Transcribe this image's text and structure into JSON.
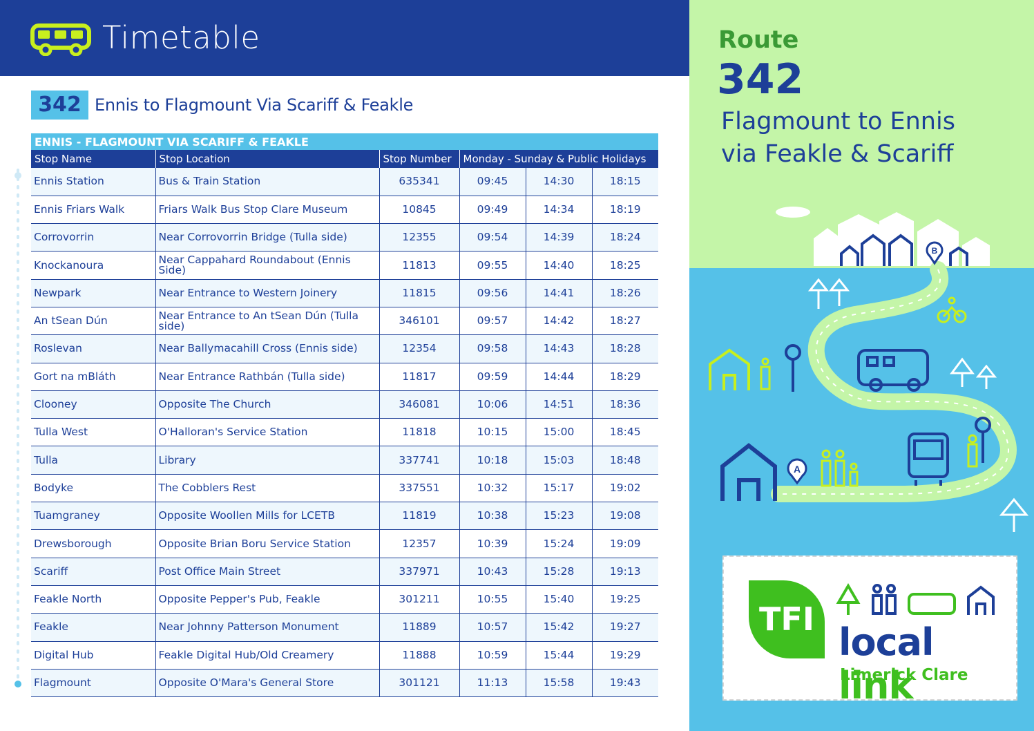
{
  "header": {
    "title": "Timetable"
  },
  "route": {
    "badge": "342",
    "name": "Ennis to Flagmount Via Scariff & Feakle"
  },
  "table": {
    "caption": "ENNIS - FLAGMOUNT VIA SCARIFF & FEAKLE",
    "headers": [
      "Stop Name",
      "Stop Location",
      "Stop Number",
      "Monday - Sunday & Public Holidays"
    ],
    "rows": [
      [
        "Ennis Station",
        "Bus & Train Station",
        "635341",
        "09:45",
        "14:30",
        "18:15"
      ],
      [
        "Ennis Friars Walk",
        "Friars Walk Bus Stop Clare Museum",
        "10845",
        "09:49",
        "14:34",
        "18:19"
      ],
      [
        "Corrovorrin",
        "Near Corrovorrin Bridge (Tulla side)",
        "12355",
        "09:54",
        "14:39",
        "18:24"
      ],
      [
        "Knockanoura",
        "Near Cappahard Roundabout (Ennis Side)",
        "11813",
        "09:55",
        "14:40",
        "18:25"
      ],
      [
        "Newpark",
        "Near Entrance to Western Joinery",
        "11815",
        "09:56",
        "14:41",
        "18:26"
      ],
      [
        "An tSean Dún",
        "Near Entrance to An tSean Dún (Tulla side)",
        "346101",
        "09:57",
        "14:42",
        "18:27"
      ],
      [
        "Roslevan",
        "Near Ballymacahill Cross (Ennis side)",
        "12354",
        "09:58",
        "14:43",
        "18:28"
      ],
      [
        "Gort na mBláth",
        "Near Entrance Rathbán (Tulla side)",
        "11817",
        "09:59",
        "14:44",
        "18:29"
      ],
      [
        "Clooney",
        "Opposite The Church",
        "346081",
        "10:06",
        "14:51",
        "18:36"
      ],
      [
        "Tulla West",
        "O'Halloran's Service Station",
        "11818",
        "10:15",
        "15:00",
        "18:45"
      ],
      [
        "Tulla",
        "Library",
        "337741",
        "10:18",
        "15:03",
        "18:48"
      ],
      [
        "Bodyke",
        "The Cobblers Rest",
        "337551",
        "10:32",
        "15:17",
        "19:02"
      ],
      [
        "Tuamgraney",
        "Opposite Woollen Mills for LCETB",
        "11819",
        "10:38",
        "15:23",
        "19:08"
      ],
      [
        "Drewsborough",
        "Opposite Brian Boru Service Station",
        "12357",
        "10:39",
        "15:24",
        "19:09"
      ],
      [
        "Scariff",
        "Post Office Main Street",
        "337971",
        "10:43",
        "15:28",
        "19:13"
      ],
      [
        "Feakle North",
        "Opposite Pepper's Pub, Feakle",
        "301211",
        "10:55",
        "15:40",
        "19:25"
      ],
      [
        "Feakle",
        "Near Johnny Patterson Monument",
        "11889",
        "10:57",
        "15:42",
        "19:27"
      ],
      [
        "Digital Hub",
        "Feakle Digital Hub/Old Creamery",
        "11888",
        "10:59",
        "15:44",
        "19:29"
      ],
      [
        "Flagmount",
        "Opposite O'Mara's General Store",
        "301121",
        "11:13",
        "15:58",
        "19:43"
      ]
    ]
  },
  "panel": {
    "route_label": "Route",
    "route_number": "342",
    "desc_line1": "Flagmount to Ennis",
    "desc_line2": "via Feakle & Scariff",
    "map_labels": {
      "a": "A",
      "b": "B"
    }
  },
  "logo": {
    "tfi": "TFI",
    "local": "local",
    "link": "link",
    "region": "Limerick Clare"
  },
  "colors": {
    "navy": "#1d3f98",
    "sky": "#55c1e8",
    "mint": "#c4f5a8",
    "green": "#3fbf1f",
    "lime": "#c8ef1e"
  }
}
